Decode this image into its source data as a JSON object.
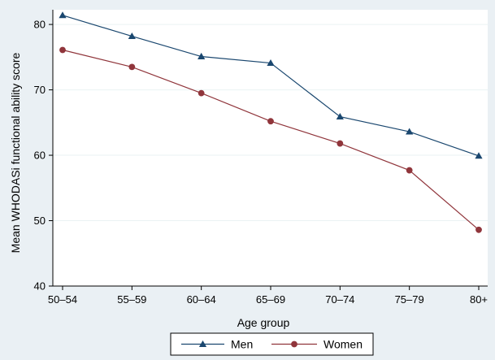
{
  "chart_data": {
    "type": "line",
    "title": "",
    "xlabel": "Age group",
    "ylabel": "Mean WHODASi functional ability score",
    "categories": [
      "50–54",
      "55–59",
      "60–64",
      "65–69",
      "70–74",
      "75–79",
      "80+"
    ],
    "ylim": [
      40,
      82
    ],
    "yticks": [
      40,
      50,
      60,
      70,
      80
    ],
    "grid": "horizontal",
    "legend_position": "bottom",
    "series": [
      {
        "name": "Men",
        "marker": "triangle",
        "color": "#1a476f",
        "values": [
          81.4,
          78.2,
          75.1,
          74.1,
          65.9,
          63.6,
          59.9
        ]
      },
      {
        "name": "Women",
        "marker": "circle",
        "color": "#90353b",
        "values": [
          76.1,
          73.5,
          69.5,
          65.2,
          61.8,
          57.7,
          48.6
        ]
      }
    ]
  },
  "colors": {
    "background": "#eaf0f4",
    "plot_area": "#ffffff",
    "grid": "#eaf2f3"
  }
}
